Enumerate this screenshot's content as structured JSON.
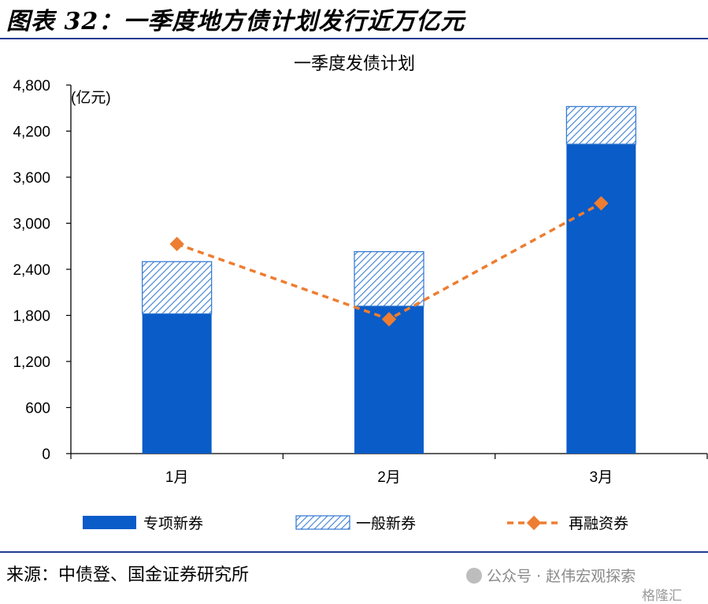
{
  "figure": {
    "title": "图表 32：一季度地方债计划发行近万亿元",
    "source": "来源：中债登、国金证券研究所",
    "watermark": "公众号 · 赵伟宏观探索",
    "watermark2": "格隆汇"
  },
  "chart_data": {
    "type": "bar",
    "title": "一季度发债计划",
    "ylabel": "(亿元)",
    "ylim": [
      0,
      4800
    ],
    "yticks": [
      0,
      600,
      1200,
      1800,
      2400,
      3000,
      3600,
      4200,
      4800
    ],
    "ytick_labels": [
      "0",
      "600",
      "1,200",
      "1,800",
      "2,400",
      "3,000",
      "3,600",
      "4,200",
      "4,800"
    ],
    "categories": [
      "1月",
      "2月",
      "3月"
    ],
    "stacked": true,
    "series": [
      {
        "name": "专项新券",
        "kind": "bar",
        "color": "#0a5cc8",
        "values": [
          1820,
          1920,
          4030
        ]
      },
      {
        "name": "一般新券",
        "kind": "bar-hatched",
        "color": "#2e75d1",
        "values": [
          680,
          710,
          490
        ]
      },
      {
        "name": "再融资券",
        "kind": "line-dashed",
        "color": "#ed7d31",
        "values": [
          2730,
          1750,
          3260
        ]
      }
    ],
    "legend_position": "bottom",
    "grid": false
  }
}
